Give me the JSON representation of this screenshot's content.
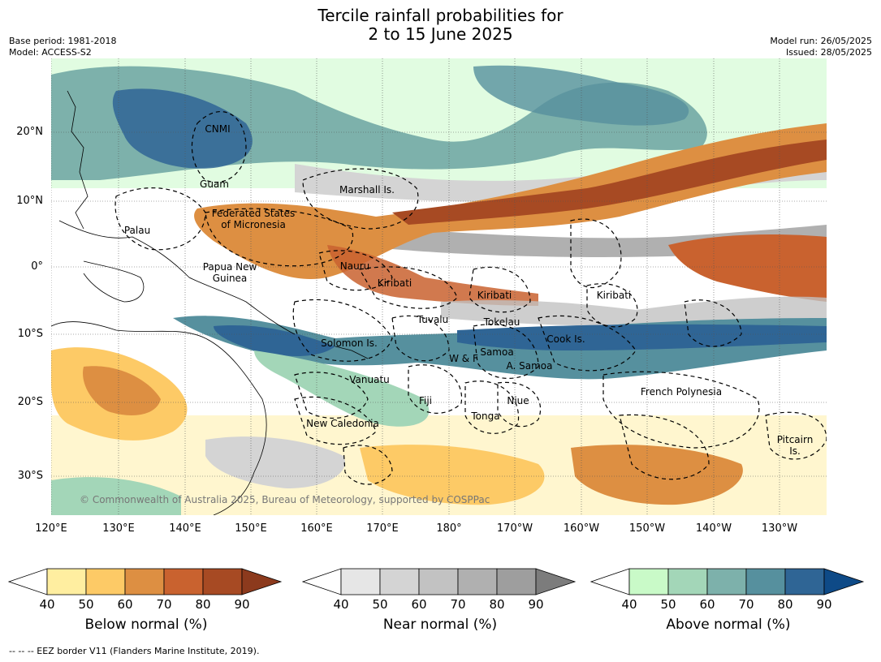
{
  "title_line1": "Tercile rainfall probabilities for",
  "title_line2": "2 to 15 June 2025",
  "meta": {
    "base_period": "Base period: 1981-2018",
    "model": "Model: ACCESS-S2",
    "model_run": "Model run: 26/05/2025",
    "issued": "Issued: 28/05/2025"
  },
  "map": {
    "lat_labels": [
      "20°N",
      "10°N",
      "0°",
      "10°S",
      "20°S",
      "30°S"
    ],
    "lon_labels": [
      "120°E",
      "130°E",
      "140°E",
      "150°E",
      "160°E",
      "170°E",
      "180°",
      "170°W",
      "160°W",
      "150°W",
      "140°W",
      "130°W"
    ],
    "regions": {
      "cnmi": "CNMI",
      "guam": "Guam",
      "marshall": "Marshall Is.",
      "fsm_line1": "Federated States",
      "fsm_line2": "of Micronesia",
      "palau": "Palau",
      "png_line1": "Papua New",
      "png_line2": "Guinea",
      "nauru": "Nauru",
      "kiribati_w": "Kiribati",
      "kiribati_c": "Kiribati",
      "kiribati_e": "Kiribati",
      "tuvalu": "Tuvalu",
      "tokelau": "Tokelau",
      "cook": "Cook Is.",
      "solomon": "Solomon Is.",
      "wf": "W & F",
      "samoa": "Samoa",
      "asamoa": "A. Samoa",
      "vanuatu": "Vanuatu",
      "fiji": "Fiji",
      "niue": "Niue",
      "tonga": "Tonga",
      "newcal": "New Caledonia",
      "frenchpoly": "French Polynesia",
      "pitcairn_line1": "Pitcairn",
      "pitcairn_line2": "Is."
    },
    "copyright": "© Commonwealth of Australia 2025, Bureau of Meteorology, supported by COSPPac"
  },
  "colorbars": [
    {
      "title": "Below normal (%)",
      "ticks": [
        "40",
        "50",
        "60",
        "70",
        "80",
        "90"
      ],
      "colors": [
        "#ffeea0",
        "#fdca66",
        "#dd8f42",
        "#c9622f",
        "#a74a23",
        "#8c3a1d"
      ]
    },
    {
      "title": "Near normal (%)",
      "ticks": [
        "40",
        "50",
        "60",
        "70",
        "80",
        "90"
      ],
      "colors": [
        "#e6e6e6",
        "#d4d4d4",
        "#c2c2c2",
        "#b0b0b0",
        "#9e9e9e",
        "#7c7c7c"
      ]
    },
    {
      "title": "Above normal (%)",
      "ticks": [
        "40",
        "50",
        "60",
        "70",
        "80",
        "90"
      ],
      "colors": [
        "#c9fac8",
        "#a3d6b8",
        "#7db1ab",
        "#56909e",
        "#2f6595",
        "#0e4a87"
      ]
    }
  ],
  "footer": "--  --  -- EEZ border V11 (Flanders Marine Institute, 2019)."
}
